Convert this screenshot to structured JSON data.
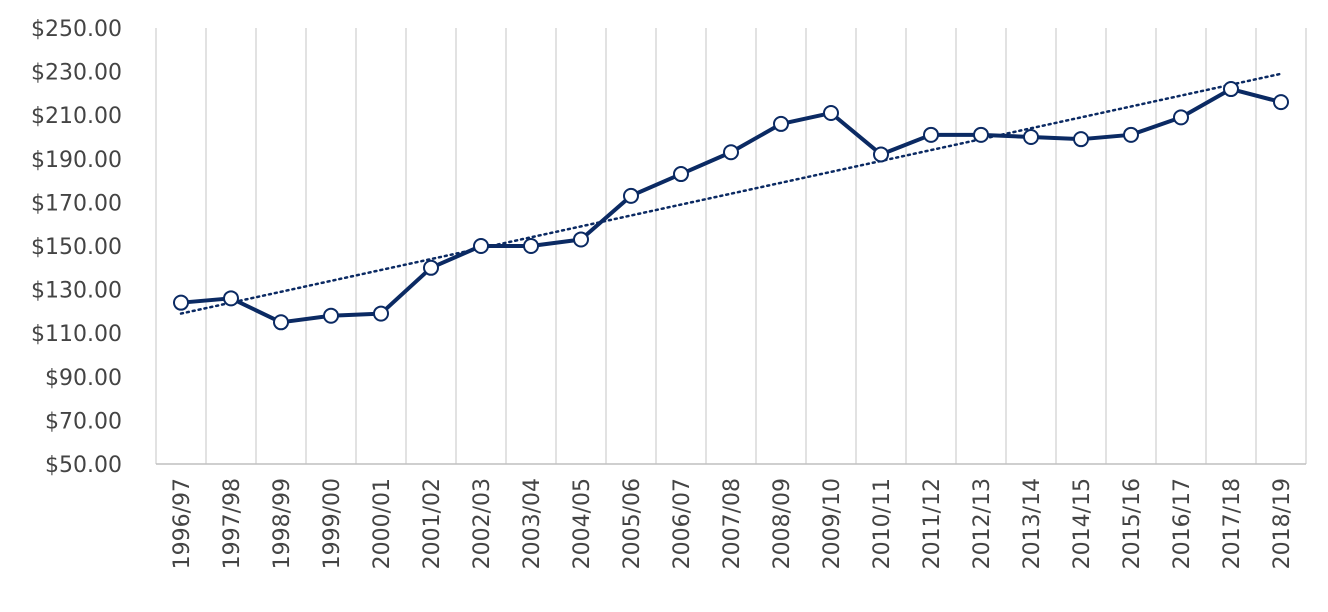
{
  "chart_data": {
    "type": "line",
    "title": "",
    "xlabel": "",
    "ylabel": "",
    "categories": [
      "1996/97",
      "1997/98",
      "1998/99",
      "1999/00",
      "2000/01",
      "2001/02",
      "2002/03",
      "2003/04",
      "2004/05",
      "2005/06",
      "2006/07",
      "2007/08",
      "2008/09",
      "2009/10",
      "2010/11",
      "2011/12",
      "2012/13",
      "2013/14",
      "2014/15",
      "2015/16",
      "2016/17",
      "2017/18",
      "2018/19"
    ],
    "series": [
      {
        "values": [
          124,
          126,
          115,
          118,
          119,
          140,
          150,
          150,
          153,
          173,
          183,
          193,
          206,
          211,
          192,
          201,
          201,
          200,
          199,
          201,
          209,
          222,
          216
        ]
      }
    ],
    "trendline": {
      "type": "linear",
      "start": 119,
      "end": 229
    },
    "ylim": [
      50,
      250
    ],
    "y_ticks": [
      "$50.00",
      "$70.00",
      "$90.00",
      "$110.00",
      "$130.00",
      "$150.00",
      "$170.00",
      "$190.00",
      "$210.00",
      "$230.00",
      "$250.00"
    ],
    "grid": "vertical",
    "legend": "none",
    "colors": {
      "line": "#0b2a63",
      "marker_fill": "#ffffff",
      "grid": "#d9d9d9",
      "axis": "#bfbfbf",
      "text": "#444444"
    }
  }
}
